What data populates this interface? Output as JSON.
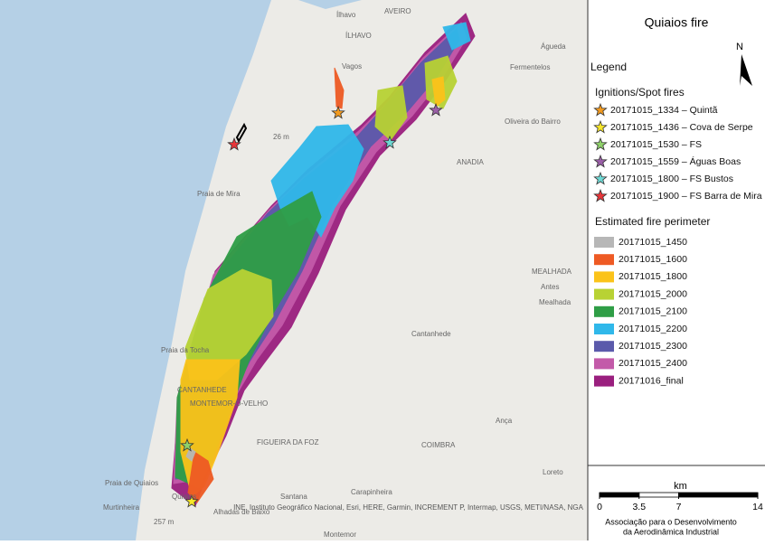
{
  "title": "Quiaios fire",
  "north": "N",
  "legend": {
    "title": "Legend",
    "ignitions_title": "Ignitions/Spot fires",
    "ignitions": [
      {
        "label": "20171015_1334 – Quintã",
        "color": "#f29a1f"
      },
      {
        "label": "20171015_1436 – Cova de Serpe",
        "color": "#f7e62a"
      },
      {
        "label": "20171015_1530 – FS",
        "color": "#8fd16a"
      },
      {
        "label": "20171015_1559 – Águas Boas",
        "color": "#9b5fa8"
      },
      {
        "label": "20171015_1800 – FS Bustos",
        "color": "#6ed8d4"
      },
      {
        "label": "20171015_1900 – FS Barra de Mira",
        "color": "#e8363a"
      }
    ],
    "perimeter_title": "Estimated fire perimeter",
    "perimeters": [
      {
        "label": "20171015_1450",
        "color": "#b7b7b7"
      },
      {
        "label": "20171015_1600",
        "color": "#ee5a24"
      },
      {
        "label": "20171015_1800",
        "color": "#fbc31a"
      },
      {
        "label": "20171015_2000",
        "color": "#b8d234"
      },
      {
        "label": "20171015_2100",
        "color": "#2f9e46"
      },
      {
        "label": "20171015_2200",
        "color": "#30b8ea"
      },
      {
        "label": "20171015_2300",
        "color": "#5b5aab"
      },
      {
        "label": "20171015_2400",
        "color": "#c35aa9"
      },
      {
        "label": "20171016_final",
        "color": "#9a1f7e"
      }
    ]
  },
  "scale": {
    "unit": "km",
    "ticks": [
      0,
      3.5,
      7,
      14
    ]
  },
  "credit": [
    "Associação para o Desenvolvimento",
    "da Aerodinâmica Industrial"
  ],
  "attribution": "INE, Instituto Geográfico Nacional, Esri, HERE, Garmin, INCREMENT P, Intermap, USGS, METI/NASA, NGA",
  "places": [
    "Ílhavo",
    "AVEIRO",
    "ÍLHAVO",
    "Águeda",
    "Fermentelos",
    "Vagos",
    "Oliveira do Bairro",
    "ANADIA",
    "Praia de Mira",
    "Praia da Tocha",
    "Cantanhede",
    "MEALHADA",
    "Mealhada",
    "Antes",
    "CANTANHEDE",
    "MONTEMOR-O-VELHO",
    "FIGUEIRA DA FOZ",
    "COIMBRA",
    "Ança",
    "Loreto",
    "Praia de Quiaios",
    "Murtinheira",
    "Quiaios",
    "Santana",
    "Alhadas de Baixo",
    "Carapinheira",
    "Montemor",
    "26 m",
    "257 m"
  ]
}
